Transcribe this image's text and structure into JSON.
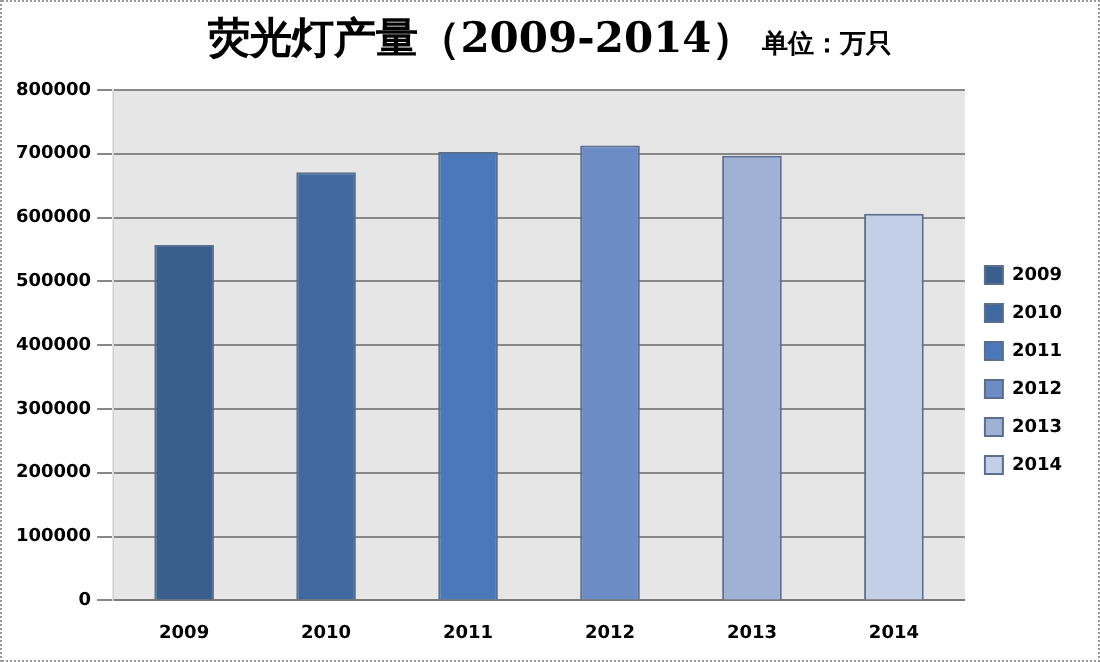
{
  "chart_data": {
    "type": "bar",
    "title": "荧光灯产量（2009-2014）",
    "subtitle": "单位：万只",
    "categories": [
      "2009",
      "2010",
      "2011",
      "2012",
      "2013",
      "2014"
    ],
    "series": [
      {
        "name": "2009",
        "color": "#3a5f8f",
        "values": [
          557000,
          null,
          null,
          null,
          null,
          null
        ]
      },
      {
        "name": "2010",
        "color": "#40699f",
        "values": [
          null,
          671000,
          null,
          null,
          null,
          null
        ]
      },
      {
        "name": "2011",
        "color": "#4a78b8",
        "values": [
          null,
          null,
          703000,
          null,
          null,
          null
        ]
      },
      {
        "name": "2012",
        "color": "#6b8cc4",
        "values": [
          null,
          null,
          null,
          713000,
          null,
          null
        ]
      },
      {
        "name": "2013",
        "color": "#9fb2d6",
        "values": [
          null,
          null,
          null,
          null,
          697000,
          null
        ]
      },
      {
        "name": "2014",
        "color": "#c3cfe6",
        "values": [
          null,
          null,
          null,
          null,
          null,
          606000
        ]
      }
    ],
    "ylim": [
      0,
      800000
    ],
    "yticks": [
      0,
      100000,
      200000,
      300000,
      400000,
      500000,
      600000,
      700000,
      800000
    ],
    "grid": "y",
    "legend": "right"
  }
}
